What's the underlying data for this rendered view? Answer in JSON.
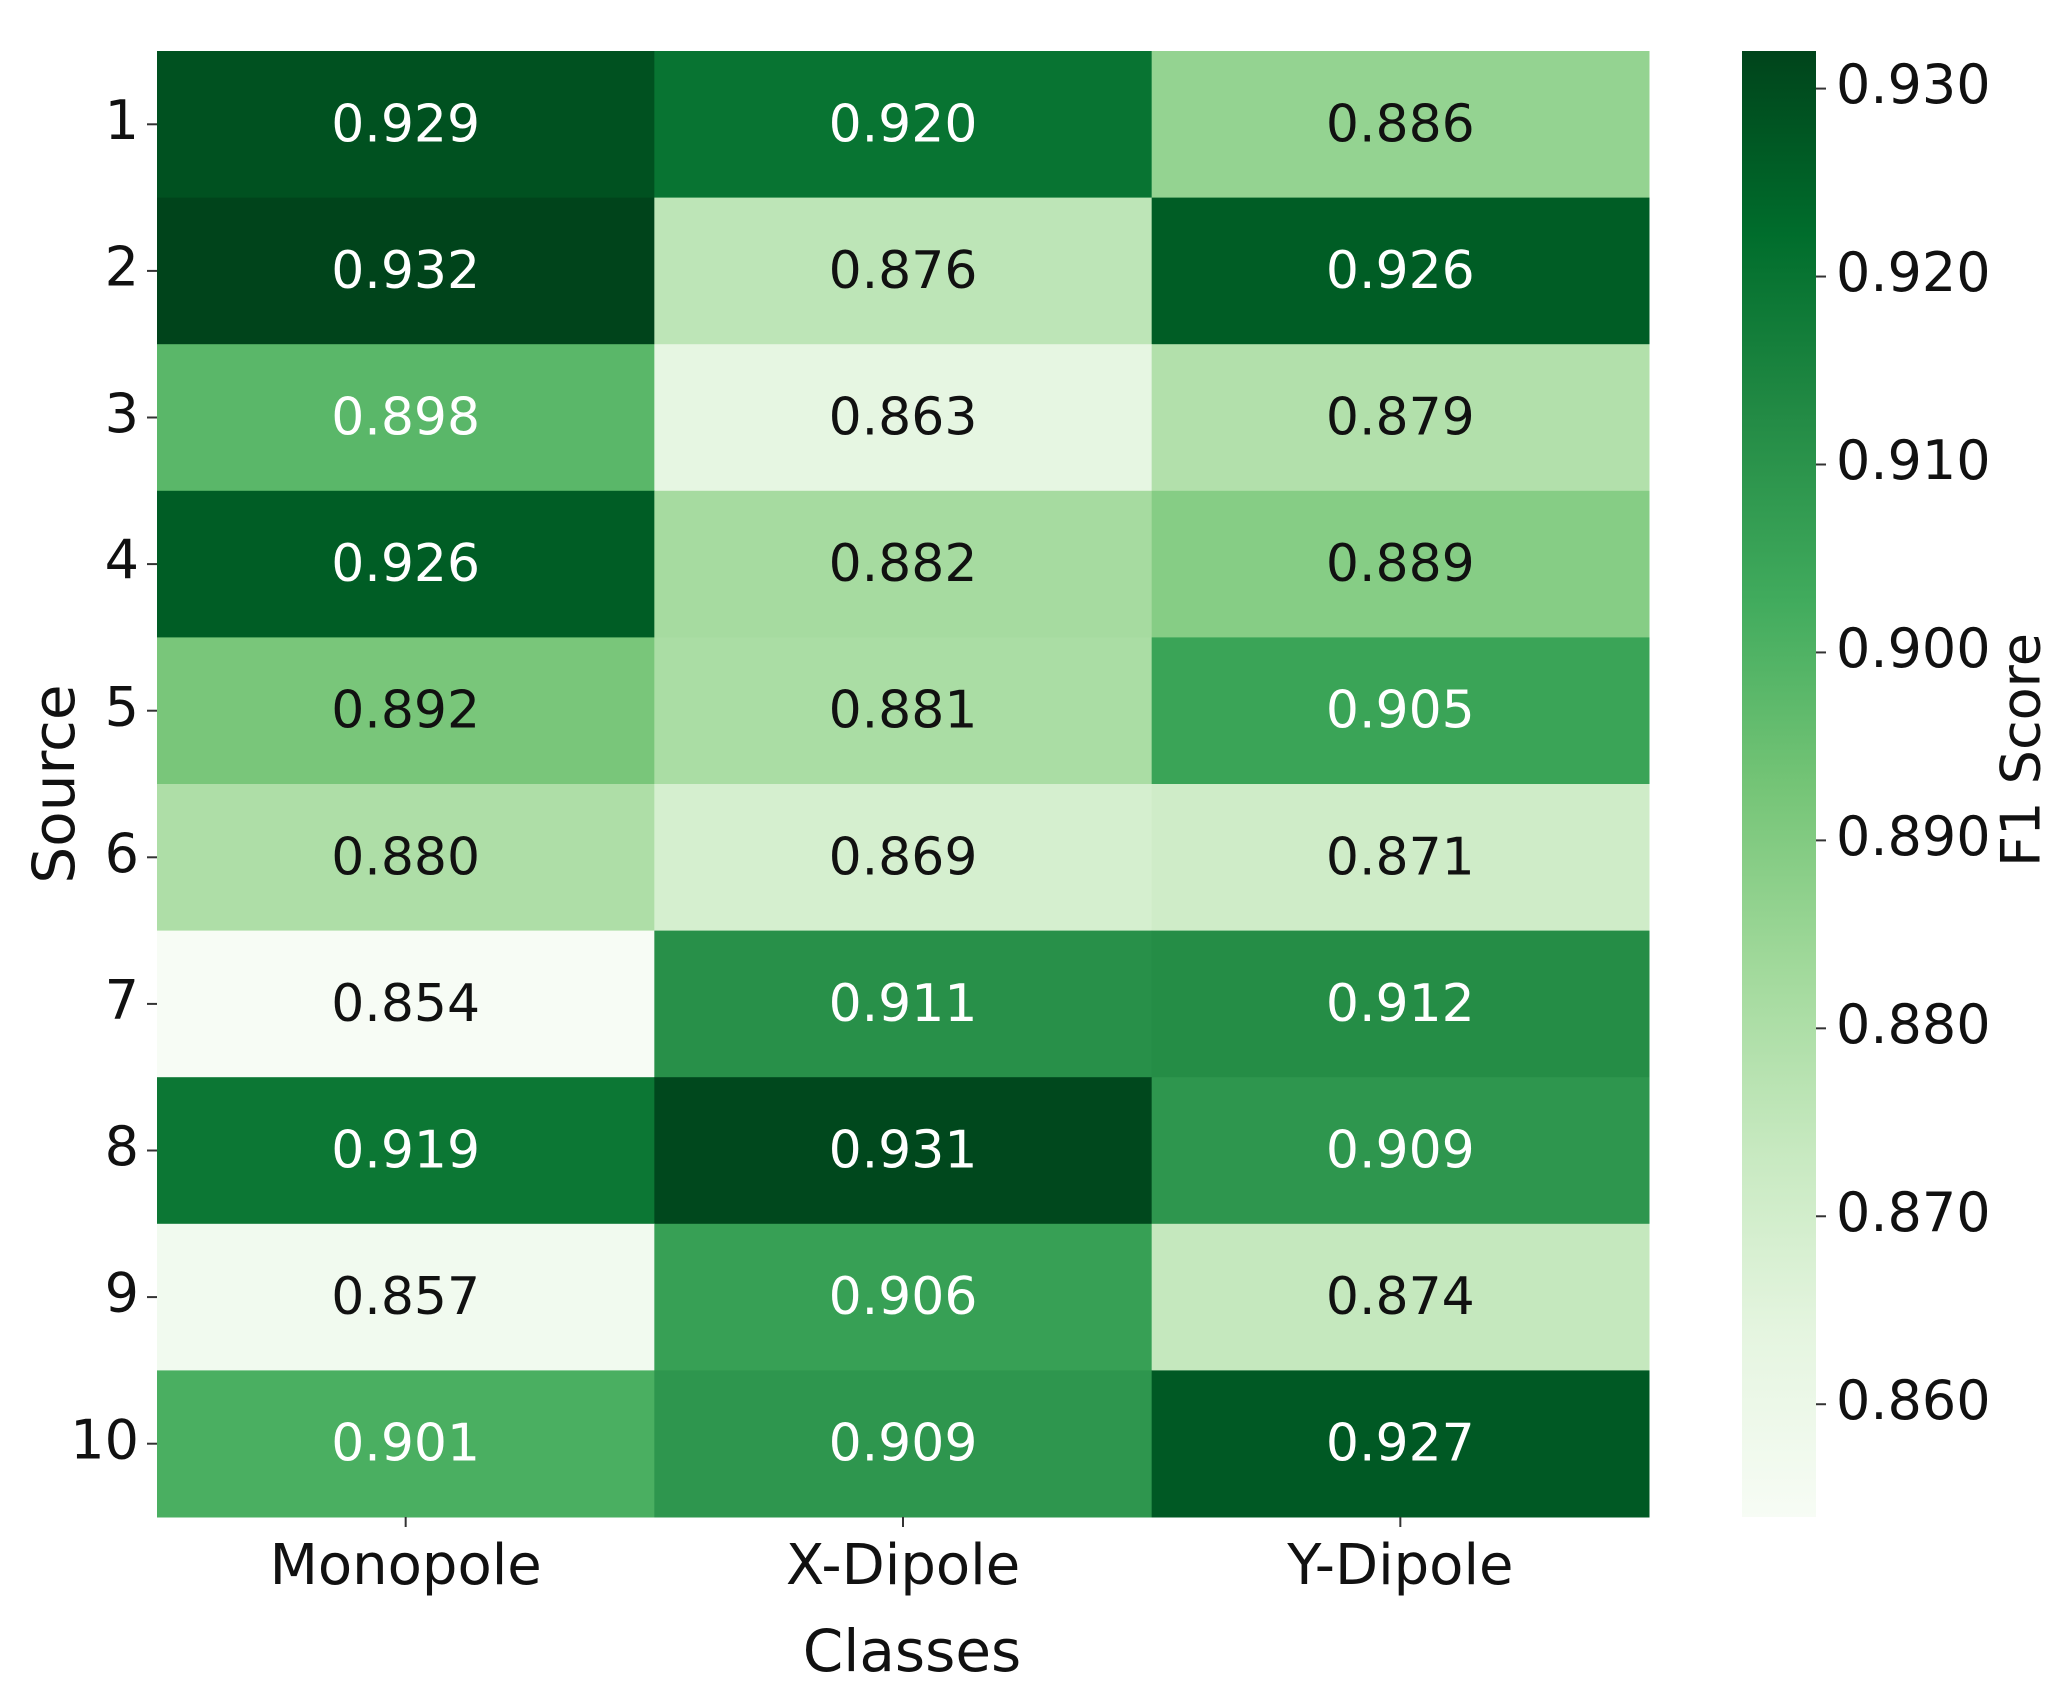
{
  "chart_data": {
    "type": "heatmap",
    "xlabel": "Classes",
    "ylabel": "Source",
    "colorbar_label": "F1 Score",
    "categories": [
      "Monopole",
      "X-Dipole",
      "Y-Dipole"
    ],
    "rows": [
      "1",
      "2",
      "3",
      "4",
      "5",
      "6",
      "7",
      "8",
      "9",
      "10"
    ],
    "values": [
      [
        0.929,
        0.92,
        0.886
      ],
      [
        0.932,
        0.876,
        0.926
      ],
      [
        0.898,
        0.863,
        0.879
      ],
      [
        0.926,
        0.882,
        0.889
      ],
      [
        0.892,
        0.881,
        0.905
      ],
      [
        0.88,
        0.869,
        0.871
      ],
      [
        0.854,
        0.911,
        0.912
      ],
      [
        0.919,
        0.931,
        0.909
      ],
      [
        0.857,
        0.906,
        0.874
      ],
      [
        0.901,
        0.909,
        0.927
      ]
    ],
    "value_labels": [
      [
        "0.929",
        "0.920",
        "0.886"
      ],
      [
        "0.932",
        "0.876",
        "0.926"
      ],
      [
        "0.898",
        "0.863",
        "0.879"
      ],
      [
        "0.926",
        "0.882",
        "0.889"
      ],
      [
        "0.892",
        "0.881",
        "0.905"
      ],
      [
        "0.880",
        "0.869",
        "0.871"
      ],
      [
        "0.854",
        "0.911",
        "0.912"
      ],
      [
        "0.919",
        "0.931",
        "0.909"
      ],
      [
        "0.857",
        "0.906",
        "0.874"
      ],
      [
        "0.901",
        "0.909",
        "0.927"
      ]
    ],
    "colormap": [
      "#f7fcf5",
      "#e5f5e0",
      "#c7e9c0",
      "#a1d99b",
      "#74c476",
      "#41ab5d",
      "#238b45",
      "#006d2c",
      "#00441b"
    ],
    "clim": [
      0.854,
      0.932
    ],
    "cticks": [
      {
        "value": 0.86,
        "label": "0.860"
      },
      {
        "value": 0.87,
        "label": "0.870"
      },
      {
        "value": 0.88,
        "label": "0.880"
      },
      {
        "value": 0.89,
        "label": "0.890"
      },
      {
        "value": 0.9,
        "label": "0.900"
      },
      {
        "value": 0.91,
        "label": "0.910"
      },
      {
        "value": 0.92,
        "label": "0.920"
      },
      {
        "value": 0.93,
        "label": "0.930"
      }
    ]
  }
}
